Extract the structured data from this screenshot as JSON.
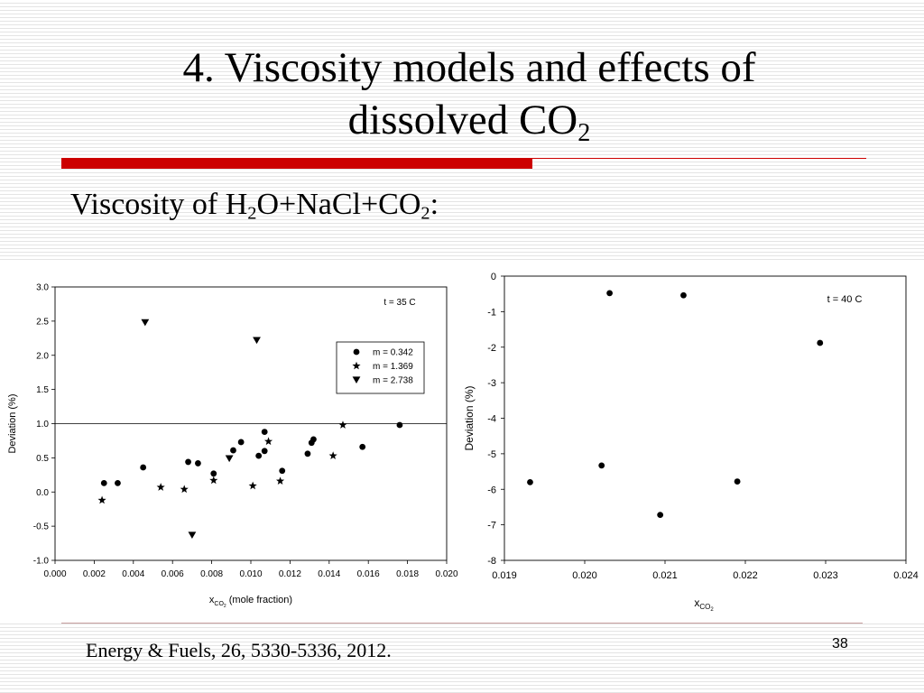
{
  "slide": {
    "title_line1": "4. Viscosity models and effects of",
    "title_line2": "dissolved CO",
    "title_sub": "2",
    "subtitle_parts": [
      "Viscosity of H",
      "2",
      "O+NaCl+CO",
      "2",
      ":"
    ],
    "citation": "Energy & Fuels, 26, 5330-5336, 2012.",
    "page_number": "38",
    "accent_color": "#cc0000"
  },
  "chart_data": [
    {
      "type": "scatter",
      "annotation": "t = 35 C",
      "xlabel_main": "x",
      "xlabel_sub": "CO",
      "xlabel_subsub": "2",
      "xlabel_suffix": " (mole fraction)",
      "ylabel": "Deviation (%)",
      "xlim": [
        0.0,
        0.02
      ],
      "ylim": [
        -1.0,
        3.0
      ],
      "xticks": [
        "0.000",
        "0.002",
        "0.004",
        "0.006",
        "0.008",
        "0.010",
        "0.012",
        "0.014",
        "0.016",
        "0.018",
        "0.020"
      ],
      "xtick_values": [
        0.0,
        0.002,
        0.004,
        0.006,
        0.008,
        0.01,
        0.012,
        0.014,
        0.016,
        0.018,
        0.02
      ],
      "yticks": [
        "-1.0",
        "-0.5",
        "0.0",
        "0.5",
        "1.0",
        "1.5",
        "2.0",
        "2.5",
        "3.0"
      ],
      "ytick_values": [
        -1.0,
        -0.5,
        0.0,
        0.5,
        1.0,
        1.5,
        2.0,
        2.5,
        3.0
      ],
      "reference_line_y": 1.0,
      "legend_position": "upper-right",
      "series": [
        {
          "name": "m = 0.342",
          "marker": "circle",
          "points": [
            [
              0.0025,
              0.13
            ],
            [
              0.0032,
              0.13
            ],
            [
              0.0045,
              0.36
            ],
            [
              0.0068,
              0.44
            ],
            [
              0.0073,
              0.42
            ],
            [
              0.0081,
              0.27
            ],
            [
              0.0091,
              0.61
            ],
            [
              0.0095,
              0.73
            ],
            [
              0.0104,
              0.53
            ],
            [
              0.0107,
              0.88
            ],
            [
              0.0107,
              0.6
            ],
            [
              0.0116,
              0.31
            ],
            [
              0.0129,
              0.56
            ],
            [
              0.0131,
              0.72
            ],
            [
              0.0132,
              0.77
            ],
            [
              0.0157,
              0.66
            ],
            [
              0.0176,
              0.98
            ]
          ]
        },
        {
          "name": "m = 1.369",
          "marker": "star",
          "points": [
            [
              0.0024,
              -0.12
            ],
            [
              0.0054,
              0.07
            ],
            [
              0.0066,
              0.04
            ],
            [
              0.0081,
              0.17
            ],
            [
              0.0101,
              0.09
            ],
            [
              0.0109,
              0.74
            ],
            [
              0.0115,
              0.16
            ],
            [
              0.0142,
              0.53
            ],
            [
              0.0147,
              0.98
            ]
          ]
        },
        {
          "name": "m = 2.738",
          "marker": "triangle-down",
          "points": [
            [
              0.0046,
              2.48
            ],
            [
              0.007,
              -0.63
            ],
            [
              0.0089,
              0.49
            ],
            [
              0.0103,
              2.22
            ]
          ]
        }
      ]
    },
    {
      "type": "scatter",
      "annotation": "t = 40 C",
      "xlabel_main": "x",
      "xlabel_sub": "CO",
      "xlabel_subsub": "2",
      "ylabel": "Deviation (%)",
      "xlim": [
        0.019,
        0.024
      ],
      "ylim": [
        -8,
        0
      ],
      "xticks": [
        "0.019",
        "0.020",
        "0.021",
        "0.022",
        "0.023",
        "0.024"
      ],
      "xtick_values": [
        0.019,
        0.02,
        0.021,
        0.022,
        0.023,
        0.024
      ],
      "yticks": [
        "-8",
        "-7",
        "-6",
        "-5",
        "-4",
        "-3",
        "-2",
        "-1",
        "0"
      ],
      "ytick_values": [
        -8,
        -7,
        -6,
        -5,
        -4,
        -3,
        -2,
        -1,
        0
      ],
      "series": [
        {
          "marker": "circle",
          "points": [
            [
              0.01932,
              -5.8
            ],
            [
              0.02021,
              -5.33
            ],
            [
              0.02031,
              -0.48
            ],
            [
              0.02094,
              -6.72
            ],
            [
              0.02123,
              -0.54
            ],
            [
              0.0219,
              -5.78
            ],
            [
              0.02293,
              -1.88
            ]
          ]
        }
      ]
    }
  ]
}
